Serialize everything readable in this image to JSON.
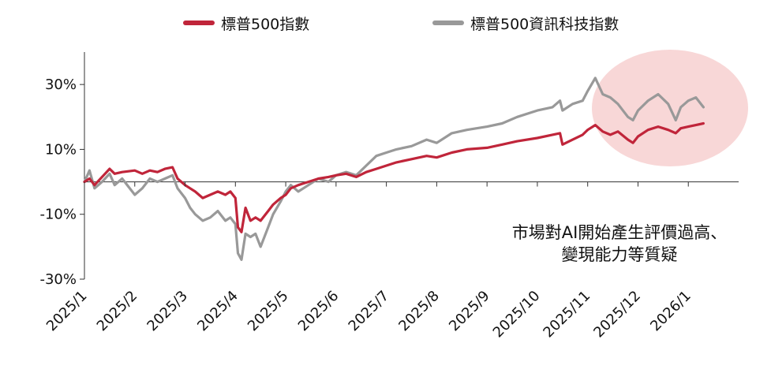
{
  "chart_data": {
    "type": "line",
    "title": "",
    "xlabel": "",
    "ylabel": "",
    "ylim": [
      -30,
      40
    ],
    "yticks": [
      "30%",
      "10%",
      "-10%",
      "-30%"
    ],
    "ytick_values": [
      30,
      10,
      -10,
      -30
    ],
    "x_ticks": [
      "2025/1",
      "2025/2",
      "2025/3",
      "2025/4",
      "2025/5",
      "2025/6",
      "2025/7",
      "2025/8",
      "2025/9",
      "2025/10",
      "2025/11",
      "2025/12",
      "2026/1"
    ],
    "grid": false,
    "legend_position": "top",
    "series": [
      {
        "name": "標普500指數",
        "color": "#c0253a",
        "points": [
          [
            "2025/1",
            0
          ],
          [
            "2025/1.1",
            1
          ],
          [
            "2025/1.2",
            -1
          ],
          [
            "2025/1.35",
            1.5
          ],
          [
            "2025/1.5",
            4
          ],
          [
            "2025/1.6",
            2.5
          ],
          [
            "2025/1.75",
            3
          ],
          [
            "2025/2",
            3.5
          ],
          [
            "2025/2.15",
            2.5
          ],
          [
            "2025/2.3",
            3.5
          ],
          [
            "2025/2.45",
            3
          ],
          [
            "2025/2.6",
            4
          ],
          [
            "2025/2.75",
            4.5
          ],
          [
            "2025/2.85",
            1
          ],
          [
            "2025/3",
            -1
          ],
          [
            "2025/3.1",
            -2
          ],
          [
            "2025/3.2",
            -3
          ],
          [
            "2025/3.35",
            -5
          ],
          [
            "2025/3.5",
            -4
          ],
          [
            "2025/3.65",
            -3
          ],
          [
            "2025/3.8",
            -4
          ],
          [
            "2025/3.9",
            -3
          ],
          [
            "2025/4",
            -5
          ],
          [
            "2025/4.05",
            -14
          ],
          [
            "2025/4.12",
            -15.5
          ],
          [
            "2025/4.2",
            -8
          ],
          [
            "2025/4.3",
            -12
          ],
          [
            "2025/4.4",
            -11
          ],
          [
            "2025/4.5",
            -12
          ],
          [
            "2025/4.65",
            -9
          ],
          [
            "2025/4.75",
            -7
          ],
          [
            "2025/4.9",
            -5
          ],
          [
            "2025/5",
            -4
          ],
          [
            "2025/5.1",
            -2
          ],
          [
            "2025/5.25",
            -1
          ],
          [
            "2025/5.45",
            0
          ],
          [
            "2025/5.65",
            1
          ],
          [
            "2025/5.85",
            1.5
          ],
          [
            "2025/6",
            2
          ],
          [
            "2025/6.2",
            2.5
          ],
          [
            "2025/6.4",
            1.5
          ],
          [
            "2025/6.6",
            3
          ],
          [
            "2025/6.8",
            4
          ],
          [
            "2025/7",
            5
          ],
          [
            "2025/7.2",
            6
          ],
          [
            "2025/7.5",
            7
          ],
          [
            "2025/7.8",
            8
          ],
          [
            "2025/8",
            7.5
          ],
          [
            "2025/8.3",
            9
          ],
          [
            "2025/8.6",
            10
          ],
          [
            "2025/9",
            10.5
          ],
          [
            "2025/9.3",
            11.5
          ],
          [
            "2025/9.6",
            12.5
          ],
          [
            "2025/10",
            13.5
          ],
          [
            "2025/10.3",
            14.5
          ],
          [
            "2025/10.45",
            15
          ],
          [
            "2025/10.5",
            11.5
          ],
          [
            "2025/10.7",
            13
          ],
          [
            "2025/10.9",
            14.5
          ],
          [
            "2025/11",
            16
          ],
          [
            "2025/11.15",
            17.5
          ],
          [
            "2025/11.3",
            15.5
          ],
          [
            "2025/11.45",
            14.5
          ],
          [
            "2025/11.6",
            15.5
          ],
          [
            "2025/11.8",
            13
          ],
          [
            "2025/11.9",
            12
          ],
          [
            "2025/12",
            14
          ],
          [
            "2025/12.2",
            16
          ],
          [
            "2025/12.4",
            17
          ],
          [
            "2025/12.6",
            16
          ],
          [
            "2025/12.75",
            15
          ],
          [
            "2025/12.85",
            16.5
          ],
          [
            "2026/1",
            17
          ],
          [
            "2026/1.15",
            17.5
          ],
          [
            "2026/1.3",
            18
          ]
        ]
      },
      {
        "name": "標普500資訊科技指數",
        "color": "#999999",
        "points": [
          [
            "2025/1",
            0
          ],
          [
            "2025/1.1",
            3.5
          ],
          [
            "2025/1.2",
            -2
          ],
          [
            "2025/1.35",
            0
          ],
          [
            "2025/1.5",
            2.5
          ],
          [
            "2025/1.6",
            -1
          ],
          [
            "2025/1.75",
            1
          ],
          [
            "2025/2",
            -4
          ],
          [
            "2025/2.15",
            -2
          ],
          [
            "2025/2.3",
            1
          ],
          [
            "2025/2.45",
            0
          ],
          [
            "2025/2.6",
            1
          ],
          [
            "2025/2.75",
            2
          ],
          [
            "2025/2.85",
            -2
          ],
          [
            "2025/3",
            -5
          ],
          [
            "2025/3.1",
            -8
          ],
          [
            "2025/3.2",
            -10
          ],
          [
            "2025/3.35",
            -12
          ],
          [
            "2025/3.5",
            -11
          ],
          [
            "2025/3.65",
            -9
          ],
          [
            "2025/3.8",
            -12
          ],
          [
            "2025/3.9",
            -11
          ],
          [
            "2025/4",
            -13
          ],
          [
            "2025/4.05",
            -22
          ],
          [
            "2025/4.12",
            -24
          ],
          [
            "2025/4.2",
            -16
          ],
          [
            "2025/4.3",
            -17
          ],
          [
            "2025/4.4",
            -16
          ],
          [
            "2025/4.5",
            -20
          ],
          [
            "2025/4.65",
            -14
          ],
          [
            "2025/4.75",
            -10
          ],
          [
            "2025/4.9",
            -6
          ],
          [
            "2025/5",
            -3
          ],
          [
            "2025/5.1",
            -1
          ],
          [
            "2025/5.25",
            -3
          ],
          [
            "2025/5.45",
            -1
          ],
          [
            "2025/5.65",
            1
          ],
          [
            "2025/5.85",
            0
          ],
          [
            "2025/6",
            2
          ],
          [
            "2025/6.2",
            3
          ],
          [
            "2025/6.4",
            2
          ],
          [
            "2025/6.6",
            5
          ],
          [
            "2025/6.8",
            8
          ],
          [
            "2025/7",
            9
          ],
          [
            "2025/7.2",
            10
          ],
          [
            "2025/7.5",
            11
          ],
          [
            "2025/7.8",
            13
          ],
          [
            "2025/8",
            12
          ],
          [
            "2025/8.3",
            15
          ],
          [
            "2025/8.6",
            16
          ],
          [
            "2025/9",
            17
          ],
          [
            "2025/9.3",
            18
          ],
          [
            "2025/9.6",
            20
          ],
          [
            "2025/10",
            22
          ],
          [
            "2025/10.3",
            23
          ],
          [
            "2025/10.45",
            25
          ],
          [
            "2025/10.5",
            22
          ],
          [
            "2025/10.7",
            24
          ],
          [
            "2025/10.9",
            25
          ],
          [
            "2025/11",
            28
          ],
          [
            "2025/11.15",
            32
          ],
          [
            "2025/11.3",
            27
          ],
          [
            "2025/11.45",
            26
          ],
          [
            "2025/11.6",
            24
          ],
          [
            "2025/11.8",
            20
          ],
          [
            "2025/11.9",
            19
          ],
          [
            "2025/12",
            22
          ],
          [
            "2025/12.2",
            25
          ],
          [
            "2025/12.4",
            27
          ],
          [
            "2025/12.6",
            24
          ],
          [
            "2025/12.75",
            19
          ],
          [
            "2025/12.85",
            23
          ],
          [
            "2026/1",
            25
          ],
          [
            "2026/1.15",
            26
          ],
          [
            "2026/1.3",
            23
          ]
        ]
      }
    ],
    "highlight": {
      "color": "#f8d7d7"
    },
    "annotation_lines": [
      "市場對AI開始產生評價過高、",
      "變現能力等質疑"
    ]
  }
}
